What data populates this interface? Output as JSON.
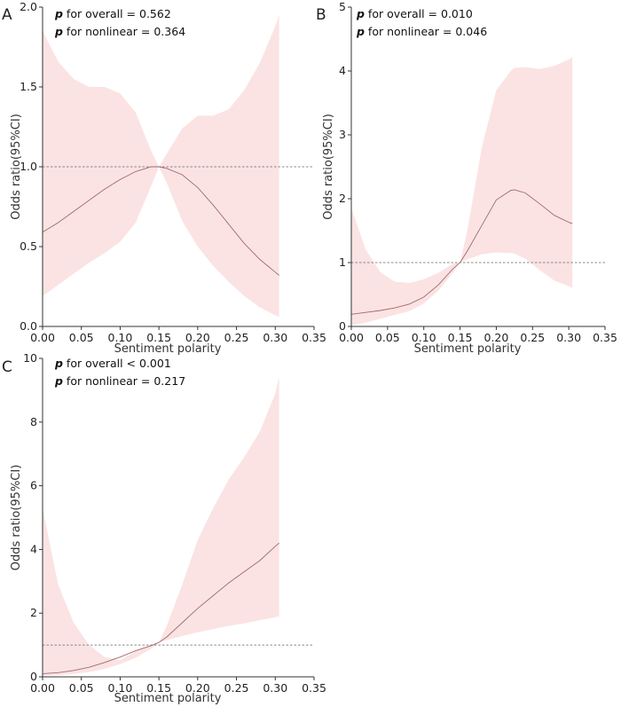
{
  "chart_data": [
    {
      "type": "line",
      "panel": "A",
      "title": "",
      "xlabel": "Sentiment polarity",
      "ylabel": "Odds ratio(95%CI)",
      "xlim": [
        0,
        0.35
      ],
      "ylim": [
        0,
        2.0
      ],
      "xticks": [
        "0.00",
        "0.05",
        "0.10",
        "0.15",
        "0.20",
        "0.25",
        "0.30",
        "0.35"
      ],
      "yticks": [
        "0.0",
        "0.5",
        "1.0",
        "1.5",
        "2.0"
      ],
      "reference_y": 1.0,
      "annotations": [
        {
          "p": "p",
          "text": " for overall = 0.562"
        },
        {
          "p": "p",
          "text": " for nonlinear = 0.364"
        }
      ],
      "series": [
        {
          "x": [
            0.0,
            0.02,
            0.04,
            0.06,
            0.08,
            0.1,
            0.12,
            0.14,
            0.15,
            0.16,
            0.18,
            0.2,
            0.22,
            0.24,
            0.26,
            0.28,
            0.3,
            0.305
          ],
          "y": [
            0.59,
            0.65,
            0.72,
            0.79,
            0.86,
            0.92,
            0.97,
            1.0,
            1.0,
            0.99,
            0.95,
            0.87,
            0.76,
            0.64,
            0.52,
            0.42,
            0.34,
            0.32
          ],
          "lower": [
            0.19,
            0.26,
            0.33,
            0.4,
            0.46,
            0.53,
            0.65,
            0.88,
            1.0,
            0.9,
            0.66,
            0.5,
            0.38,
            0.28,
            0.19,
            0.12,
            0.07,
            0.06
          ],
          "upper": [
            1.85,
            1.66,
            1.55,
            1.5,
            1.5,
            1.46,
            1.34,
            1.1,
            1.0,
            1.08,
            1.24,
            1.32,
            1.32,
            1.36,
            1.48,
            1.65,
            1.88,
            1.95
          ]
        }
      ]
    },
    {
      "type": "line",
      "panel": "B",
      "title": "",
      "xlabel": "Sentiment polarity",
      "ylabel": "Odds ratio(95%CI)",
      "xlim": [
        0,
        0.35
      ],
      "ylim": [
        0,
        5
      ],
      "xticks": [
        "0.00",
        "0.05",
        "0.10",
        "0.15",
        "0.20",
        "0.25",
        "0.30",
        "0.35"
      ],
      "yticks": [
        "0",
        "1",
        "2",
        "3",
        "4",
        "5"
      ],
      "reference_y": 1,
      "annotations": [
        {
          "p": "p",
          "text": " for overall = 0.010"
        },
        {
          "p": "p",
          "text": " for nonlinear = 0.046"
        }
      ],
      "series": [
        {
          "x": [
            0.0,
            0.02,
            0.04,
            0.06,
            0.08,
            0.1,
            0.12,
            0.14,
            0.15,
            0.16,
            0.18,
            0.2,
            0.22,
            0.225,
            0.24,
            0.26,
            0.28,
            0.3,
            0.305
          ],
          "y": [
            0.19,
            0.22,
            0.25,
            0.29,
            0.35,
            0.46,
            0.65,
            0.9,
            1.0,
            1.18,
            1.58,
            1.98,
            2.13,
            2.14,
            2.09,
            1.92,
            1.74,
            1.63,
            1.61
          ],
          "lower": [
            0.02,
            0.06,
            0.12,
            0.18,
            0.24,
            0.36,
            0.56,
            0.84,
            1.0,
            1.05,
            1.13,
            1.16,
            1.15,
            1.14,
            1.06,
            0.88,
            0.72,
            0.63,
            0.6
          ],
          "upper": [
            1.85,
            1.2,
            0.85,
            0.7,
            0.68,
            0.74,
            0.84,
            0.98,
            1.0,
            1.5,
            2.8,
            3.7,
            4.0,
            4.05,
            4.06,
            4.03,
            4.08,
            4.18,
            4.22
          ]
        }
      ]
    },
    {
      "type": "line",
      "panel": "C",
      "title": "",
      "xlabel": "Sentiment polarity",
      "ylabel": "Odds ratio(95%CI)",
      "xlim": [
        0,
        0.35
      ],
      "ylim": [
        0,
        10
      ],
      "xticks": [
        "0.00",
        "0.05",
        "0.10",
        "0.15",
        "0.20",
        "0.25",
        "0.30",
        "0.35"
      ],
      "yticks": [
        "0",
        "2",
        "4",
        "6",
        "8",
        "10"
      ],
      "reference_y": 1,
      "annotations": [
        {
          "p": "p",
          "text": " for overall < 0.001"
        },
        {
          "p": "p",
          "text": " for nonlinear = 0.217"
        }
      ],
      "series": [
        {
          "x": [
            0.0,
            0.02,
            0.04,
            0.06,
            0.08,
            0.1,
            0.12,
            0.14,
            0.15,
            0.16,
            0.18,
            0.2,
            0.22,
            0.24,
            0.26,
            0.28,
            0.3,
            0.305
          ],
          "y": [
            0.1,
            0.13,
            0.2,
            0.3,
            0.45,
            0.62,
            0.82,
            0.98,
            1.08,
            1.25,
            1.7,
            2.15,
            2.55,
            2.95,
            3.3,
            3.65,
            4.1,
            4.2
          ],
          "lower": [
            0.04,
            0.05,
            0.09,
            0.15,
            0.25,
            0.4,
            0.6,
            0.88,
            1.08,
            1.15,
            1.28,
            1.4,
            1.5,
            1.6,
            1.68,
            1.78,
            1.87,
            1.9
          ],
          "upper": [
            5.3,
            2.9,
            1.7,
            1.0,
            0.62,
            0.52,
            0.8,
            1.0,
            1.08,
            1.6,
            2.9,
            4.3,
            5.3,
            6.2,
            6.9,
            7.7,
            8.9,
            9.4
          ]
        }
      ]
    }
  ]
}
